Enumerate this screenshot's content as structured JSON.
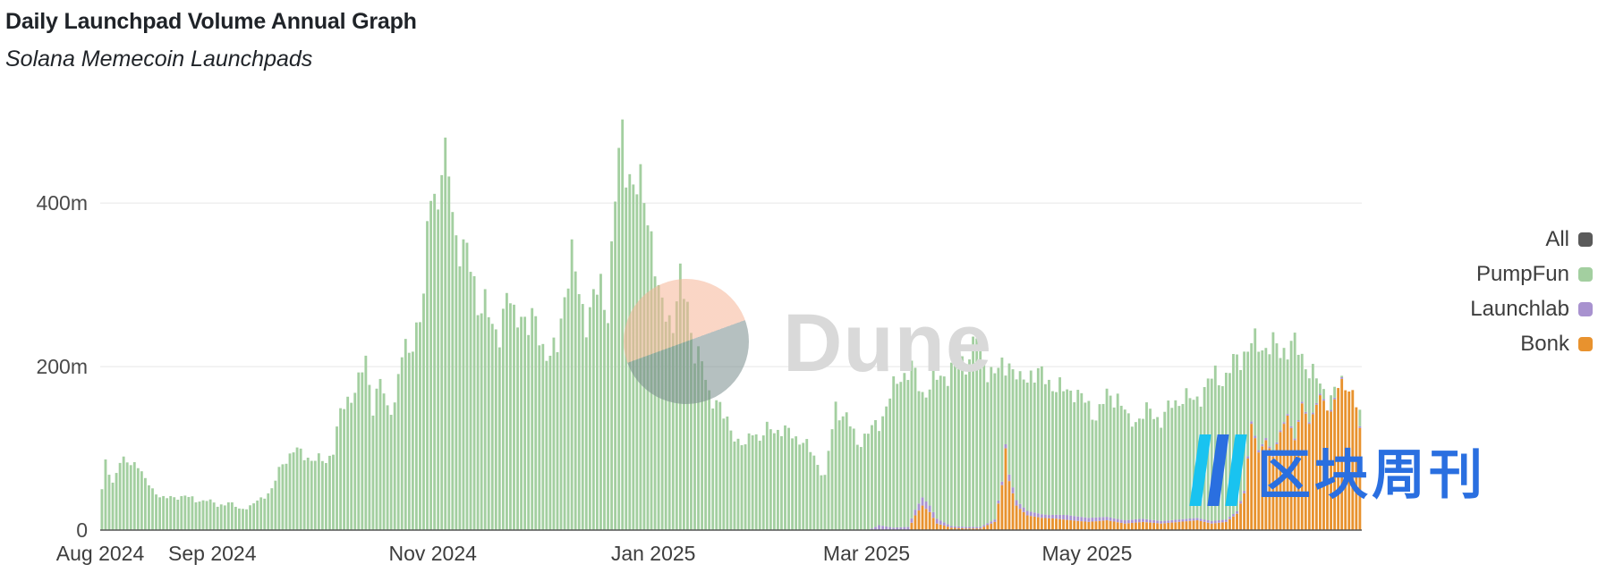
{
  "header": {
    "title": "Daily Launchpad Volume Annual Graph",
    "subtitle": "Solana Memecoin Launchpads"
  },
  "legend": [
    {
      "label": "All",
      "color": "#5a5a5a"
    },
    {
      "label": "PumpFun",
      "color": "#a3cfa0"
    },
    {
      "label": "Launchlab",
      "color": "#a892cf"
    },
    {
      "label": "Bonk",
      "color": "#e8922e"
    }
  ],
  "watermarks": {
    "dune": "Dune",
    "brand": "区块周刊"
  },
  "chart_data": {
    "type": "bar",
    "stacked": true,
    "title": "Daily Launchpad Volume Annual Graph",
    "subtitle": "Solana Memecoin Launchpads",
    "x_tick_labels": [
      "Aug 2024",
      "Sep 2024",
      "Nov 2024",
      "Jan 2025",
      "Mar 2025",
      "May 2025"
    ],
    "y_tick_labels": [
      "0",
      "200m",
      "400m"
    ],
    "y_ticks": [
      0,
      200,
      400
    ],
    "ylim": [
      0,
      550
    ],
    "units": "USD millions",
    "grid": true,
    "legend_position": "right",
    "x_start": "2024-08-01",
    "x_end": "2025-07-15",
    "series": [
      {
        "name": "PumpFun",
        "color": "#a3cfa0",
        "points": [
          [
            "2024-08-01",
            55
          ],
          [
            "2024-08-02",
            88
          ],
          [
            "2024-08-04",
            62
          ],
          [
            "2024-08-06",
            98
          ],
          [
            "2024-08-09",
            85
          ],
          [
            "2024-08-11",
            92
          ],
          [
            "2024-08-13",
            68
          ],
          [
            "2024-08-15",
            52
          ],
          [
            "2024-08-18",
            45
          ],
          [
            "2024-08-21",
            42
          ],
          [
            "2024-08-24",
            48
          ],
          [
            "2024-08-27",
            38
          ],
          [
            "2024-08-30",
            42
          ],
          [
            "2024-09-02",
            32
          ],
          [
            "2024-09-05",
            38
          ],
          [
            "2024-09-08",
            28
          ],
          [
            "2024-09-11",
            32
          ],
          [
            "2024-09-14",
            42
          ],
          [
            "2024-09-17",
            55
          ],
          [
            "2024-09-20",
            90
          ],
          [
            "2024-09-23",
            108
          ],
          [
            "2024-09-26",
            100
          ],
          [
            "2024-09-29",
            95
          ],
          [
            "2024-10-02",
            92
          ],
          [
            "2024-10-04",
            110
          ],
          [
            "2024-10-06",
            155
          ],
          [
            "2024-10-09",
            185
          ],
          [
            "2024-10-11",
            198
          ],
          [
            "2024-10-13",
            225
          ],
          [
            "2024-10-15",
            170
          ],
          [
            "2024-10-17",
            200
          ],
          [
            "2024-10-19",
            158
          ],
          [
            "2024-10-21",
            178
          ],
          [
            "2024-10-23",
            235
          ],
          [
            "2024-10-25",
            238
          ],
          [
            "2024-10-27",
            278
          ],
          [
            "2024-10-29",
            305
          ],
          [
            "2024-10-31",
            465
          ],
          [
            "2024-11-02",
            448
          ],
          [
            "2024-11-03",
            495
          ],
          [
            "2024-11-05",
            470
          ],
          [
            "2024-11-07",
            398
          ],
          [
            "2024-11-09",
            378
          ],
          [
            "2024-11-11",
            350
          ],
          [
            "2024-11-13",
            310
          ],
          [
            "2024-11-15",
            305
          ],
          [
            "2024-11-17",
            265
          ],
          [
            "2024-11-19",
            272
          ],
          [
            "2024-11-21",
            315
          ],
          [
            "2024-11-23",
            282
          ],
          [
            "2024-11-25",
            300
          ],
          [
            "2024-11-27",
            268
          ],
          [
            "2024-11-29",
            282
          ],
          [
            "2024-12-01",
            250
          ],
          [
            "2024-12-03",
            228
          ],
          [
            "2024-12-05",
            248
          ],
          [
            "2024-12-07",
            325
          ],
          [
            "2024-12-09",
            360
          ],
          [
            "2024-12-11",
            320
          ],
          [
            "2024-12-13",
            285
          ],
          [
            "2024-12-15",
            305
          ],
          [
            "2024-12-17",
            330
          ],
          [
            "2024-12-19",
            298
          ],
          [
            "2024-12-21",
            440
          ],
          [
            "2024-12-23",
            540
          ],
          [
            "2024-12-25",
            478
          ],
          [
            "2024-12-27",
            445
          ],
          [
            "2024-12-29",
            462
          ],
          [
            "2024-12-31",
            400
          ],
          [
            "2025-01-02",
            305
          ],
          [
            "2025-01-04",
            298
          ],
          [
            "2025-01-06",
            280
          ],
          [
            "2025-01-08",
            328
          ],
          [
            "2025-01-10",
            308
          ],
          [
            "2025-01-12",
            240
          ],
          [
            "2025-01-14",
            220
          ],
          [
            "2025-01-16",
            185
          ],
          [
            "2025-01-18",
            175
          ],
          [
            "2025-01-20",
            150
          ],
          [
            "2025-01-22",
            140
          ],
          [
            "2025-01-24",
            118
          ],
          [
            "2025-01-26",
            110
          ],
          [
            "2025-01-28",
            140
          ],
          [
            "2025-01-30",
            120
          ],
          [
            "2025-02-02",
            140
          ],
          [
            "2025-02-05",
            132
          ],
          [
            "2025-02-08",
            130
          ],
          [
            "2025-02-11",
            118
          ],
          [
            "2025-02-14",
            100
          ],
          [
            "2025-02-17",
            70
          ],
          [
            "2025-02-20",
            168
          ],
          [
            "2025-02-23",
            150
          ],
          [
            "2025-02-26",
            118
          ],
          [
            "2025-03-01",
            130
          ],
          [
            "2025-03-04",
            145
          ],
          [
            "2025-03-07",
            178
          ],
          [
            "2025-03-10",
            210
          ],
          [
            "2025-03-13",
            215
          ],
          [
            "2025-03-16",
            185
          ],
          [
            "2025-03-19",
            198
          ],
          [
            "2025-03-22",
            210
          ],
          [
            "2025-03-25",
            218
          ],
          [
            "2025-03-28",
            228
          ],
          [
            "2025-03-31",
            258
          ],
          [
            "2025-04-03",
            218
          ],
          [
            "2025-04-06",
            210
          ],
          [
            "2025-04-09",
            230
          ],
          [
            "2025-04-12",
            195
          ],
          [
            "2025-04-15",
            215
          ],
          [
            "2025-04-18",
            205
          ],
          [
            "2025-04-21",
            198
          ],
          [
            "2025-04-24",
            185
          ],
          [
            "2025-04-27",
            190
          ],
          [
            "2025-04-30",
            170
          ],
          [
            "2025-05-03",
            155
          ],
          [
            "2025-05-06",
            178
          ],
          [
            "2025-05-09",
            182
          ],
          [
            "2025-05-12",
            145
          ],
          [
            "2025-05-15",
            152
          ],
          [
            "2025-05-18",
            160
          ],
          [
            "2025-05-21",
            148
          ],
          [
            "2025-05-24",
            168
          ],
          [
            "2025-05-27",
            180
          ],
          [
            "2025-05-30",
            172
          ],
          [
            "2025-06-02",
            190
          ],
          [
            "2025-06-05",
            208
          ],
          [
            "2025-06-08",
            205
          ],
          [
            "2025-06-11",
            230
          ],
          [
            "2025-06-14",
            245
          ],
          [
            "2025-06-17",
            250
          ],
          [
            "2025-06-20",
            248
          ],
          [
            "2025-06-23",
            240
          ],
          [
            "2025-06-26",
            252
          ],
          [
            "2025-06-29",
            232
          ],
          [
            "2025-07-01",
            220
          ],
          [
            "2025-07-03",
            200
          ],
          [
            "2025-07-06",
            178
          ],
          [
            "2025-07-09",
            190
          ],
          [
            "2025-07-12",
            200
          ],
          [
            "2025-07-15",
            152
          ]
        ]
      },
      {
        "name": "Launchlab",
        "color": "#a892cf",
        "points": [
          [
            "2025-03-01",
            0
          ],
          [
            "2025-03-04",
            6
          ],
          [
            "2025-03-08",
            3
          ],
          [
            "2025-03-12",
            4
          ],
          [
            "2025-03-16",
            10
          ],
          [
            "2025-03-20",
            6
          ],
          [
            "2025-03-24",
            2
          ],
          [
            "2025-03-28",
            2
          ],
          [
            "2025-04-01",
            2
          ],
          [
            "2025-04-05",
            3
          ],
          [
            "2025-04-08",
            5
          ],
          [
            "2025-04-09",
            8
          ],
          [
            "2025-04-12",
            6
          ],
          [
            "2025-04-16",
            5
          ],
          [
            "2025-04-20",
            4
          ],
          [
            "2025-04-25",
            6
          ],
          [
            "2025-05-01",
            5
          ],
          [
            "2025-05-08",
            4
          ],
          [
            "2025-05-15",
            4
          ],
          [
            "2025-05-22",
            3
          ],
          [
            "2025-05-29",
            3
          ],
          [
            "2025-06-05",
            3
          ],
          [
            "2025-06-15",
            3
          ],
          [
            "2025-06-25",
            2
          ],
          [
            "2025-07-05",
            2
          ],
          [
            "2025-07-15",
            2
          ]
        ]
      },
      {
        "name": "Bonk",
        "color": "#e8922e",
        "points": [
          [
            "2025-03-01",
            0
          ],
          [
            "2025-03-12",
            0
          ],
          [
            "2025-03-14",
            18
          ],
          [
            "2025-03-16",
            30
          ],
          [
            "2025-03-18",
            22
          ],
          [
            "2025-03-20",
            8
          ],
          [
            "2025-03-24",
            3
          ],
          [
            "2025-03-28",
            2
          ],
          [
            "2025-04-01",
            2
          ],
          [
            "2025-04-05",
            10
          ],
          [
            "2025-04-07",
            55
          ],
          [
            "2025-04-08",
            100
          ],
          [
            "2025-04-09",
            60
          ],
          [
            "2025-04-11",
            30
          ],
          [
            "2025-04-14",
            18
          ],
          [
            "2025-04-18",
            15
          ],
          [
            "2025-04-22",
            14
          ],
          [
            "2025-04-26",
            12
          ],
          [
            "2025-05-01",
            10
          ],
          [
            "2025-05-06",
            12
          ],
          [
            "2025-05-11",
            8
          ],
          [
            "2025-05-16",
            10
          ],
          [
            "2025-05-21",
            8
          ],
          [
            "2025-05-26",
            10
          ],
          [
            "2025-05-31",
            12
          ],
          [
            "2025-06-04",
            8
          ],
          [
            "2025-06-08",
            10
          ],
          [
            "2025-06-11",
            20
          ],
          [
            "2025-06-13",
            45
          ],
          [
            "2025-06-15",
            130
          ],
          [
            "2025-06-17",
            95
          ],
          [
            "2025-06-19",
            110
          ],
          [
            "2025-06-21",
            90
          ],
          [
            "2025-06-23",
            120
          ],
          [
            "2025-06-25",
            140
          ],
          [
            "2025-06-27",
            110
          ],
          [
            "2025-06-29",
            155
          ],
          [
            "2025-07-01",
            130
          ],
          [
            "2025-07-04",
            165
          ],
          [
            "2025-07-07",
            145
          ],
          [
            "2025-07-09",
            175
          ],
          [
            "2025-07-11",
            195
          ],
          [
            "2025-07-13",
            180
          ],
          [
            "2025-07-15",
            125
          ]
        ]
      }
    ]
  }
}
